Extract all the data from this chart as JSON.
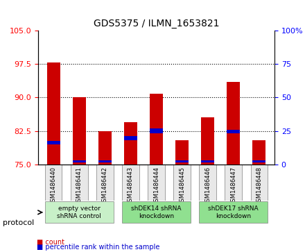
{
  "title": "GDS5375 / ILMN_1653821",
  "samples": [
    "GSM1486440",
    "GSM1486441",
    "GSM1486442",
    "GSM1486443",
    "GSM1486444",
    "GSM1486445",
    "GSM1486446",
    "GSM1486447",
    "GSM1486448"
  ],
  "count_values": [
    97.8,
    90.1,
    82.5,
    84.5,
    90.8,
    80.5,
    85.5,
    93.5,
    80.5
  ],
  "percentile_values": [
    79.5,
    75.5,
    75.5,
    80.5,
    82.0,
    75.5,
    75.5,
    82.0,
    75.5
  ],
  "blue_small_values": [
    0.8,
    0.5,
    0.5,
    0.8,
    1.0,
    0.5,
    0.5,
    0.8,
    0.5
  ],
  "ylim_left": [
    75,
    105
  ],
  "ylim_right": [
    0,
    100
  ],
  "yticks_left": [
    75,
    82.5,
    90,
    97.5,
    105
  ],
  "yticks_right": [
    0,
    25,
    50,
    75,
    100
  ],
  "bar_color_red": "#cc0000",
  "bar_color_blue": "#0000cc",
  "protocol_groups": [
    {
      "label": "empty vector\nshRNA control",
      "start": 0,
      "end": 2,
      "color": "#c8f0c8"
    },
    {
      "label": "shDEK14 shRNA\nknockdown",
      "start": 3,
      "end": 5,
      "color": "#90e090"
    },
    {
      "label": "shDEK17 shRNA\nknockdown",
      "start": 6,
      "end": 8,
      "color": "#90e090"
    }
  ],
  "legend_count_label": "count",
  "legend_percentile_label": "percentile rank within the sample",
  "protocol_label": "protocol",
  "bar_width": 0.5
}
